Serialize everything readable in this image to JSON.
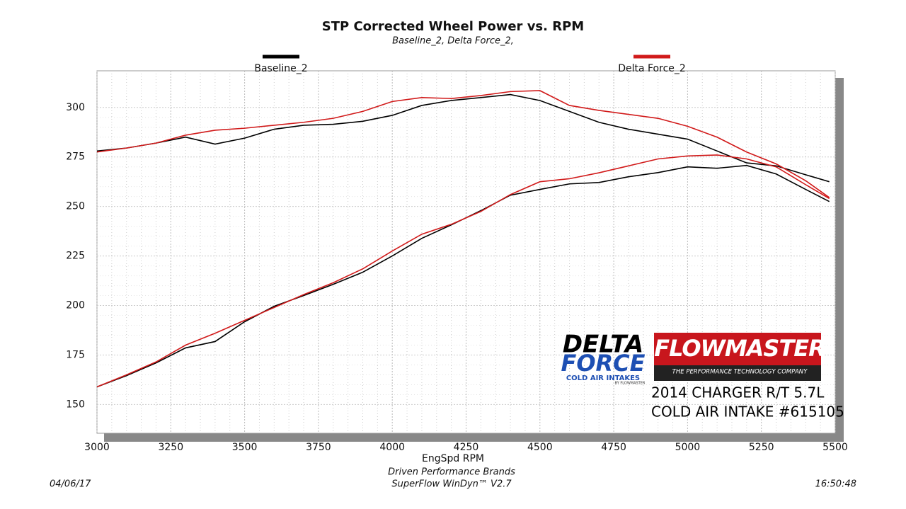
{
  "chart_data": {
    "type": "line",
    "title": "STP Corrected Wheel Power vs. RPM",
    "subtitle": "Baseline_2, Delta Force_2,",
    "x_label": "EngSpd  RPM",
    "footer": [
      "Driven Performance Brands",
      "SuperFlow WinDyn™ V2.7"
    ],
    "date": "04/06/17",
    "time": "16:50:48",
    "logo_texts": [
      "DELTA",
      "FORCE",
      "COLD AIR INTAKES",
      "BY FLOWMASTER",
      "FLOWMASTER",
      "THE PERFORMANCE TECHNOLOGY COMPANY"
    ],
    "annotations": [
      "2014 CHARGER R/T 5.7L",
      "COLD AIR INTAKE #615105"
    ],
    "x": [
      3000,
      3100,
      3200,
      3300,
      3400,
      3500,
      3600,
      3700,
      3800,
      3900,
      4000,
      4100,
      4200,
      4300,
      4400,
      4500,
      4600,
      4700,
      4800,
      4900,
      5000,
      5100,
      5200,
      5300,
      5400,
      5480
    ],
    "series": [
      {
        "name": "Baseline_2",
        "color": "#000000",
        "values": [
          158.9,
          164.6,
          171,
          178.6,
          181.8,
          191.8,
          199.6,
          205,
          210.7,
          216.8,
          225,
          233.9,
          240.7,
          247.9,
          255.7,
          258.6,
          261.4,
          262.1,
          265,
          267.1,
          270,
          269.3,
          270.7,
          266.4,
          258.6,
          252.5
        ],
        "values_2": [
          278,
          279.5,
          282,
          285,
          281.5,
          284.5,
          289,
          291,
          291.5,
          293,
          296,
          301,
          303.5,
          305,
          306.5,
          303.5,
          298,
          292.5,
          289,
          286.5,
          284,
          278,
          272,
          270.5,
          266,
          262.5
        ]
      },
      {
        "name": "Delta Force_2",
        "color": "#d11a1a",
        "values": [
          158.9,
          165,
          171.5,
          180,
          186,
          192.5,
          199,
          205.5,
          211.5,
          218.5,
          227.5,
          236,
          241,
          247.5,
          256,
          262.5,
          264,
          267,
          270.5,
          274,
          275.5,
          276,
          274,
          270,
          261,
          254
        ],
        "values_2": [
          277.5,
          279.5,
          282,
          286,
          288.5,
          289.5,
          291,
          292.5,
          294.5,
          298,
          303,
          305,
          304.5,
          306,
          308,
          308.5,
          301,
          298.5,
          296.5,
          294.5,
          290.5,
          285,
          277.5,
          271.5,
          263,
          254.5
        ]
      }
    ],
    "xlim": [
      3000,
      5500
    ],
    "xticks": [
      3000,
      3250,
      3500,
      3750,
      4000,
      4250,
      4500,
      4750,
      5000,
      5250,
      5500
    ],
    "ylim": [
      135.5,
      318.5
    ],
    "yticks": [
      150,
      175,
      200,
      225,
      250,
      275,
      300
    ],
    "grid": true
  }
}
